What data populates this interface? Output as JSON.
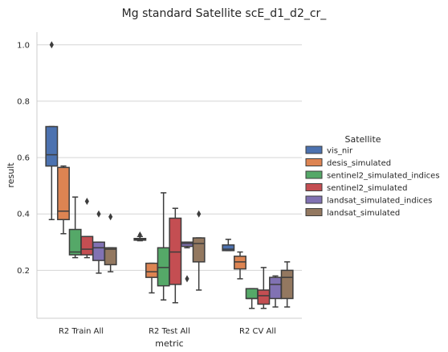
{
  "chart_data": {
    "type": "boxplot",
    "title": "Mg standard Satellite scE_d1_d2_cr_",
    "xlabel": "metric",
    "ylabel": "result",
    "ylim": [
      0.03,
      1.045
    ],
    "yticks": [
      0.2,
      0.4,
      0.6,
      0.8,
      1.0
    ],
    "yticklabels": [
      "0.2",
      "0.4",
      "0.6",
      "0.8",
      "1.0"
    ],
    "grid": "horizontal",
    "legend": {
      "title": "Satellite",
      "placement": "right"
    },
    "categories": [
      "R2 Train All",
      "R2 Test All",
      "R2 CV All"
    ],
    "series": [
      {
        "name": "vis_nir",
        "color": "#4c72b0",
        "boxes": [
          {
            "whislo": 0.38,
            "q1": 0.57,
            "med": 0.61,
            "q3": 0.71,
            "whishi": 0.71,
            "fliers": [
              1.0
            ]
          },
          {
            "whislo": 0.305,
            "q1": 0.307,
            "med": 0.31,
            "q3": 0.313,
            "whishi": 0.32,
            "fliers": [
              0.325
            ]
          },
          {
            "whislo": 0.27,
            "q1": 0.27,
            "med": 0.275,
            "q3": 0.29,
            "whishi": 0.31,
            "fliers": []
          }
        ]
      },
      {
        "name": "desis_simulated",
        "color": "#dd8452",
        "boxes": [
          {
            "whislo": 0.33,
            "q1": 0.38,
            "med": 0.41,
            "q3": 0.565,
            "whishi": 0.57,
            "fliers": []
          },
          {
            "whislo": 0.12,
            "q1": 0.175,
            "med": 0.195,
            "q3": 0.225,
            "whishi": 0.225,
            "fliers": []
          },
          {
            "whislo": 0.17,
            "q1": 0.205,
            "med": 0.23,
            "q3": 0.25,
            "whishi": 0.265,
            "fliers": []
          }
        ]
      },
      {
        "name": "sentinel2_simulated_indices",
        "color": "#55a868",
        "boxes": [
          {
            "whislo": 0.245,
            "q1": 0.255,
            "med": 0.265,
            "q3": 0.345,
            "whishi": 0.46,
            "fliers": []
          },
          {
            "whislo": 0.095,
            "q1": 0.145,
            "med": 0.21,
            "q3": 0.28,
            "whishi": 0.475,
            "fliers": []
          },
          {
            "whislo": 0.065,
            "q1": 0.1,
            "med": 0.1,
            "q3": 0.135,
            "whishi": 0.135,
            "fliers": []
          }
        ]
      },
      {
        "name": "sentinel2_simulated",
        "color": "#c44e52",
        "boxes": [
          {
            "whislo": 0.245,
            "q1": 0.255,
            "med": 0.275,
            "q3": 0.32,
            "whishi": 0.32,
            "fliers": [
              0.445
            ]
          },
          {
            "whislo": 0.085,
            "q1": 0.15,
            "med": 0.265,
            "q3": 0.385,
            "whishi": 0.42,
            "fliers": []
          },
          {
            "whislo": 0.065,
            "q1": 0.08,
            "med": 0.11,
            "q3": 0.13,
            "whishi": 0.21,
            "fliers": []
          }
        ]
      },
      {
        "name": "landsat_simulated_indices",
        "color": "#8172b3",
        "boxes": [
          {
            "whislo": 0.19,
            "q1": 0.235,
            "med": 0.28,
            "q3": 0.3,
            "whishi": 0.3,
            "fliers": [
              0.4
            ]
          },
          {
            "whislo": 0.28,
            "q1": 0.285,
            "med": 0.295,
            "q3": 0.3,
            "whishi": 0.3,
            "fliers": [
              0.17
            ]
          },
          {
            "whislo": 0.07,
            "q1": 0.1,
            "med": 0.15,
            "q3": 0.175,
            "whishi": 0.18,
            "fliers": []
          }
        ]
      },
      {
        "name": "landsat_simulated",
        "color": "#937860",
        "boxes": [
          {
            "whislo": 0.195,
            "q1": 0.22,
            "med": 0.275,
            "q3": 0.28,
            "whishi": 0.28,
            "fliers": [
              0.39
            ]
          },
          {
            "whislo": 0.13,
            "q1": 0.23,
            "med": 0.295,
            "q3": 0.315,
            "whishi": 0.315,
            "fliers": [
              0.4
            ]
          },
          {
            "whislo": 0.07,
            "q1": 0.1,
            "med": 0.175,
            "q3": 0.2,
            "whishi": 0.23,
            "fliers": []
          }
        ]
      }
    ]
  }
}
